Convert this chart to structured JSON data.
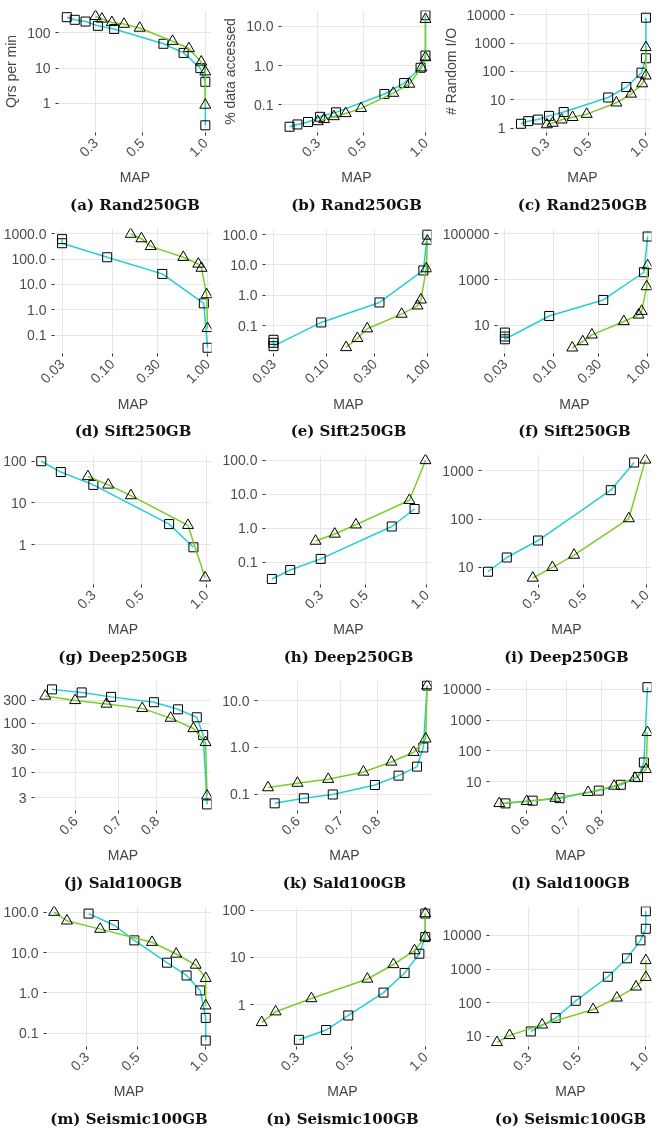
{
  "chart_data": [
    {
      "type": "line",
      "title": "(a) Rand250GB",
      "xlabel": "MAP",
      "ylabel": "Qrs per min",
      "log": "xy",
      "grid": true,
      "xlim": [
        0.2,
        1.07
      ],
      "ylim": [
        0.15,
        430
      ],
      "xticks": [
        0.3,
        0.5,
        {
          "value": 1,
          "label": "1.0"
        }
      ],
      "yticks": [
        1,
        10,
        100
      ],
      "series": [
        {
          "color": "#22cfd6",
          "marker": "square",
          "x": [
            0.219,
            0.239,
            0.269,
            0.308,
            0.368,
            0.632,
            0.788,
            0.947,
            1.0,
            1.0
          ],
          "values": [
            278,
            234,
            209,
            158,
            129,
            49,
            27,
            10,
            4.1,
            0.24
          ]
        },
        {
          "color": "#7ccd26",
          "marker": "triangle",
          "x": [
            0.3,
            0.322,
            0.359,
            0.41,
            0.487,
            0.698,
            0.835,
            0.956,
            1.0,
            1.0
          ],
          "values": [
            294,
            248,
            198,
            177,
            137,
            58,
            36,
            15,
            7.9,
            0.9
          ]
        }
      ]
    },
    {
      "type": "line",
      "title": "(b) Rand250GB",
      "xlabel": "MAP",
      "ylabel": "% data accessed",
      "log": "xy",
      "grid": true,
      "xlim": [
        0.2,
        1.07
      ],
      "ylim": [
        0.02,
        25
      ],
      "xticks": [
        0.3,
        0.5,
        {
          "value": 1,
          "label": "1.0"
        }
      ],
      "yticks": [
        0.1,
        {
          "value": 1,
          "label": "1.0"
        },
        {
          "value": 10,
          "label": "10.0"
        }
      ],
      "series": [
        {
          "color": "#22cfd6",
          "marker": "square",
          "x": [
            0.219,
            0.239,
            0.269,
            0.308,
            0.368,
            0.632,
            0.788,
            0.947,
            1.0,
            1.0
          ],
          "values": [
            0.028,
            0.032,
            0.037,
            0.05,
            0.065,
            0.19,
            0.36,
            0.88,
            1.8,
            19
          ]
        },
        {
          "color": "#7ccd26",
          "marker": "triangle",
          "x": [
            0.3,
            0.322,
            0.359,
            0.41,
            0.487,
            0.698,
            0.835,
            0.956,
            1.0,
            1.0
          ],
          "values": [
            0.038,
            0.043,
            0.051,
            0.061,
            0.082,
            0.2,
            0.34,
            0.88,
            1.6,
            15
          ]
        }
      ]
    },
    {
      "type": "line",
      "title": "(c) Rand250GB",
      "xlabel": "MAP",
      "ylabel": "# Random I/O",
      "log": "xy",
      "grid": true,
      "xlim": [
        0.2,
        1.07
      ],
      "ylim": [
        0.7,
        14000
      ],
      "xticks": [
        0.3,
        0.5,
        {
          "value": 1,
          "label": "1.0"
        }
      ],
      "yticks": [
        1,
        10,
        100,
        1000,
        10000
      ],
      "series": [
        {
          "color": "#22cfd6",
          "marker": "square",
          "x": [
            0.219,
            0.239,
            0.269,
            0.308,
            0.368,
            0.632,
            0.788,
            0.947,
            1.0,
            1.0
          ],
          "values": [
            1.42,
            1.76,
            2.0,
            2.7,
            3.7,
            12,
            28,
            90,
            290,
            7800
          ]
        },
        {
          "color": "#7ccd26",
          "marker": "triangle",
          "x": [
            0.3,
            0.322,
            0.359,
            0.41,
            0.487,
            0.698,
            0.835,
            0.956,
            1.0,
            1.0
          ],
          "values": [
            1.33,
            1.5,
            1.96,
            2.4,
            3.1,
            7.8,
            16,
            37,
            70,
            700
          ]
        }
      ]
    },
    {
      "type": "line",
      "title": "(d) Sift250GB",
      "xlabel": "MAP",
      "log": "xy",
      "grid": true,
      "xlim": [
        0.025,
        1.1
      ],
      "ylim": [
        0.019,
        1600
      ],
      "xticks": [
        0.03,
        {
          "value": 0.1,
          "label": "0.10"
        },
        {
          "value": 0.3,
          "label": "0.30"
        },
        {
          "value": 1,
          "label": "1.00"
        }
      ],
      "yticks": [
        0.1,
        {
          "value": 1,
          "label": "1.0"
        },
        {
          "value": 10,
          "label": "10.0"
        },
        {
          "value": 100,
          "label": "100.0"
        },
        {
          "value": 1000,
          "label": "1000.0"
        }
      ],
      "series": [
        {
          "color": "#22cfd6",
          "marker": "square",
          "x": [
            0.03,
            0.03,
            0.089,
            0.336,
            0.914,
            1.0
          ],
          "values": [
            610,
            420,
            118,
            26,
            1.8,
            0.032
          ]
        },
        {
          "color": "#7ccd26",
          "marker": "triangle",
          "x": [
            0.157,
            0.203,
            0.254,
            0.557,
            0.8,
            0.864,
            0.978,
            1.0
          ],
          "values": [
            960,
            640,
            316,
            118,
            64,
            44,
            4.0,
            0.185
          ]
        }
      ]
    },
    {
      "type": "line",
      "title": "(e) Sift250GB",
      "xlabel": "MAP",
      "log": "xy",
      "grid": true,
      "xlim": [
        0.025,
        1.1
      ],
      "ylim": [
        0.012,
        160
      ],
      "xticks": [
        0.03,
        {
          "value": 0.1,
          "label": "0.10"
        },
        {
          "value": 0.3,
          "label": "0.30"
        },
        {
          "value": 1,
          "label": "1.00"
        }
      ],
      "yticks": [
        0.1,
        {
          "value": 1,
          "label": "1.0"
        },
        {
          "value": 10,
          "label": "10.0"
        },
        {
          "value": 100,
          "label": "100.0"
        }
      ],
      "series": [
        {
          "color": "#22cfd6",
          "marker": "square",
          "x": [
            0.03,
            0.03,
            0.03,
            0.089,
            0.336,
            0.914,
            1.0
          ],
          "values": [
            0.034,
            0.027,
            0.021,
            0.127,
            0.58,
            6.6,
            100
          ]
        },
        {
          "color": "#7ccd26",
          "marker": "triangle",
          "x": [
            0.157,
            0.203,
            0.254,
            0.557,
            0.8,
            0.864,
            0.978,
            1.0
          ],
          "values": [
            0.019,
            0.038,
            0.079,
            0.24,
            0.45,
            0.71,
            7.6,
            62
          ]
        }
      ]
    },
    {
      "type": "line",
      "title": "(f) Sift250GB",
      "xlabel": "MAP",
      "log": "xy",
      "grid": true,
      "xlim": [
        0.025,
        1.1
      ],
      "ylim": [
        0.6,
        170000
      ],
      "xticks": [
        0.03,
        {
          "value": 0.1,
          "label": "0.10"
        },
        {
          "value": 0.3,
          "label": "0.30"
        },
        {
          "value": 1,
          "label": "1.00"
        }
      ],
      "yticks": [
        10,
        1000,
        100000
      ],
      "series": [
        {
          "color": "#22cfd6",
          "marker": "square",
          "x": [
            0.03,
            0.03,
            0.03,
            0.089,
            0.336,
            0.914,
            1.0
          ],
          "values": [
            4.9,
            3.3,
            2.5,
            26,
            130,
            2100,
            76000
          ]
        },
        {
          "color": "#7ccd26",
          "marker": "triangle",
          "x": [
            0.157,
            0.203,
            0.254,
            0.557,
            0.8,
            0.864,
            0.978,
            1.0
          ],
          "values": [
            1.06,
            2.0,
            3.9,
            15,
            29,
            42,
            500,
            4100
          ]
        }
      ]
    },
    {
      "type": "line",
      "title": "(g) Deep250GB",
      "xlabel": "MAP",
      "log": "xy",
      "grid": true,
      "xlim": [
        0.16,
        1.06
      ],
      "ylim": [
        0.11,
        145
      ],
      "xticks": [
        0.3,
        0.5,
        {
          "value": 1,
          "label": "1.0"
        }
      ],
      "yticks": [
        1,
        10,
        100
      ],
      "series": [
        {
          "color": "#22cfd6",
          "marker": "square",
          "x": [
            0.172,
            0.212,
            0.3,
            0.674,
            0.874
          ],
          "values": [
            100,
            55,
            27,
            3.1,
            0.86
          ]
        },
        {
          "color": "#7ccd26",
          "marker": "triangle",
          "x": [
            0.283,
            0.352,
            0.448,
            0.824,
            0.99
          ],
          "values": [
            43,
            27,
            15,
            2.9,
            0.16
          ]
        }
      ]
    },
    {
      "type": "line",
      "title": "(h) Deep250GB",
      "xlabel": "MAP",
      "log": "xy",
      "grid": true,
      "xlim": [
        0.16,
        1.06
      ],
      "ylim": [
        0.022,
        150
      ],
      "xticks": [
        0.3,
        0.5,
        {
          "value": 1,
          "label": "1.0"
        }
      ],
      "yticks": [
        0.1,
        {
          "value": 1,
          "label": "1.0"
        },
        {
          "value": 10,
          "label": "10.0"
        },
        {
          "value": 100,
          "label": "100.0"
        }
      ],
      "series": [
        {
          "color": "#22cfd6",
          "marker": "square",
          "x": [
            0.172,
            0.212,
            0.3,
            0.674,
            0.874
          ],
          "values": [
            0.032,
            0.059,
            0.125,
            1.13,
            3.7
          ]
        },
        {
          "color": "#7ccd26",
          "marker": "triangle",
          "x": [
            0.283,
            0.352,
            0.448,
            0.824,
            0.99
          ],
          "values": [
            0.42,
            0.68,
            1.27,
            6.7,
            100
          ]
        }
      ]
    },
    {
      "type": "line",
      "title": "(i) Deep250GB",
      "xlabel": "MAP",
      "log": "xy",
      "grid": true,
      "xlim": [
        0.16,
        1.06
      ],
      "ylim": [
        4.4,
        2200
      ],
      "xticks": [
        0.3,
        0.5,
        {
          "value": 1,
          "label": "1.0"
        }
      ],
      "yticks": [
        10,
        100,
        1000
      ],
      "series": [
        {
          "color": "#22cfd6",
          "marker": "square",
          "x": [
            0.172,
            0.212,
            0.3,
            0.674,
            0.874
          ],
          "values": [
            8.1,
            16,
            36,
            400,
            1500
          ]
        },
        {
          "color": "#7ccd26",
          "marker": "triangle",
          "x": [
            0.283,
            0.352,
            0.448,
            0.824,
            0.99
          ],
          "values": [
            6.0,
            10,
            18,
            103,
            1700
          ]
        }
      ]
    },
    {
      "type": "line",
      "title": "(j) Sald100GB",
      "xlabel": "MAP",
      "log": "xy",
      "grid": true,
      "xlim": [
        0.52,
        0.97
      ],
      "ylim": [
        1.65,
        760
      ],
      "xticks": [
        0.6,
        0.7,
        0.8
      ],
      "yticks": [
        3,
        10,
        30,
        100,
        300
      ],
      "series": [
        {
          "color": "#22cfd6",
          "marker": "square",
          "x": [
            0.553,
            0.614,
            0.681,
            0.792,
            0.862,
            0.921,
            0.942,
            0.955
          ],
          "values": [
            500,
            433,
            351,
            273,
            195,
            134,
            58,
            2.2
          ]
        },
        {
          "color": "#7ccd26",
          "marker": "triangle",
          "x": [
            0.54,
            0.6,
            0.67,
            0.76,
            0.84,
            0.91,
            0.95,
            0.955
          ],
          "values": [
            366,
            297,
            251,
            204,
            129,
            79,
            41,
            3.3
          ]
        }
      ]
    },
    {
      "type": "line",
      "title": "(k) Sald100GB",
      "xlabel": "MAP",
      "log": "xy",
      "grid": true,
      "xlim": [
        0.52,
        0.97
      ],
      "ylim": [
        0.045,
        27
      ],
      "xticks": [
        0.6,
        0.7,
        0.8
      ],
      "yticks": [
        0.1,
        {
          "value": 1,
          "label": "1.0"
        },
        {
          "value": 10,
          "label": "10.0"
        }
      ],
      "series": [
        {
          "color": "#22cfd6",
          "marker": "square",
          "x": [
            0.553,
            0.614,
            0.681,
            0.792,
            0.862,
            0.921,
            0.942,
            0.955
          ],
          "values": [
            0.064,
            0.082,
            0.099,
            0.158,
            0.25,
            0.39,
            1.0,
            21
          ]
        },
        {
          "color": "#7ccd26",
          "marker": "triangle",
          "x": [
            0.54,
            0.6,
            0.67,
            0.76,
            0.84,
            0.91,
            0.95,
            0.955
          ],
          "values": [
            0.139,
            0.173,
            0.21,
            0.3,
            0.49,
            0.79,
            1.53,
            21
          ]
        }
      ]
    },
    {
      "type": "line",
      "title": "(l) Sald100GB",
      "xlabel": "MAP",
      "log": "xy",
      "grid": true,
      "xlim": [
        0.52,
        0.97
      ],
      "ylim": [
        1.15,
        19500
      ],
      "xticks": [
        0.6,
        0.7,
        0.8
      ],
      "yticks": [
        10,
        100,
        1000,
        10000
      ],
      "series": [
        {
          "color": "#22cfd6",
          "marker": "square",
          "x": [
            0.553,
            0.614,
            0.681,
            0.792,
            0.862,
            0.921,
            0.942,
            0.955
          ],
          "values": [
            1.96,
            2.4,
            2.9,
            5.1,
            7.9,
            14,
            42,
            11800
          ]
        },
        {
          "color": "#7ccd26",
          "marker": "triangle",
          "x": [
            0.54,
            0.6,
            0.67,
            0.76,
            0.84,
            0.91,
            0.95,
            0.955
          ],
          "values": [
            1.96,
            2.3,
            2.9,
            4.5,
            7.2,
            13,
            25,
            400
          ]
        }
      ]
    },
    {
      "type": "line",
      "title": "(m) Seismic100GB",
      "xlabel": "MAP",
      "log": "xy",
      "grid": true,
      "xlim": [
        0.2,
        1.06
      ],
      "ylim": [
        0.047,
        138
      ],
      "xticks": [
        0.3,
        0.5,
        {
          "value": 1,
          "label": "1.0"
        }
      ],
      "yticks": [
        0.1,
        {
          "value": 1,
          "label": "1.0"
        },
        {
          "value": 10,
          "label": "10.0"
        },
        {
          "value": 100,
          "label": "100.0"
        }
      ],
      "series": [
        {
          "color": "#22cfd6",
          "marker": "square",
          "x": [
            0.306,
            0.395,
            0.486,
            0.676,
            0.824,
            0.946,
            1.0,
            1.0
          ],
          "values": [
            92,
            48,
            20,
            5.6,
            2.7,
            1.15,
            0.24,
            0.066
          ]
        },
        {
          "color": "#7ccd26",
          "marker": "triangle",
          "x": [
            0.216,
            0.246,
            0.344,
            0.581,
            0.742,
            0.904,
            1.0,
            1.0
          ],
          "values": [
            100,
            61,
            38,
            18,
            9.2,
            4.9,
            2.3,
            0.48
          ]
        }
      ]
    },
    {
      "type": "line",
      "title": "(n) Seismic100GB",
      "xlabel": "MAP",
      "log": "xy",
      "grid": true,
      "xlim": [
        0.2,
        1.06
      ],
      "ylim": [
        0.13,
        120
      ],
      "xticks": [
        0.3,
        0.5,
        {
          "value": 1,
          "label": "1.0"
        }
      ],
      "yticks": [
        1,
        10,
        100
      ],
      "series": [
        {
          "color": "#22cfd6",
          "marker": "square",
          "x": [
            0.306,
            0.395,
            0.486,
            0.676,
            0.824,
            0.946,
            1.0,
            1.0
          ],
          "values": [
            0.18,
            0.29,
            0.59,
            1.8,
            4.7,
            12,
            27,
            85
          ]
        },
        {
          "color": "#7ccd26",
          "marker": "triangle",
          "x": [
            0.216,
            0.246,
            0.344,
            0.581,
            0.742,
            0.904,
            1.0,
            1.0
          ],
          "values": [
            0.42,
            0.71,
            1.35,
            3.5,
            7.1,
            14,
            27,
            85
          ]
        }
      ]
    },
    {
      "type": "line",
      "title": "(o) Seismic100GB",
      "xlabel": "MAP",
      "log": "xy",
      "grid": true,
      "xlim": [
        0.2,
        1.06
      ],
      "ylim": [
        5,
        72000
      ],
      "xticks": [
        0.3,
        0.5,
        {
          "value": 1,
          "label": "1.0"
        }
      ],
      "yticks": [
        10,
        100,
        1000,
        10000
      ],
      "series": [
        {
          "color": "#22cfd6",
          "marker": "square",
          "x": [
            0.306,
            0.395,
            0.486,
            0.676,
            0.824,
            0.946,
            1.0,
            1.0
          ],
          "values": [
            14,
            35,
            114,
            590,
            2080,
            7100,
            15700,
            52000
          ]
        },
        {
          "color": "#7ccd26",
          "marker": "triangle",
          "x": [
            0.216,
            0.246,
            0.344,
            0.581,
            0.742,
            0.904,
            1.0,
            1.0
          ],
          "values": [
            6.6,
            10.7,
            22,
            63,
            139,
            296,
            570,
            1800
          ]
        }
      ]
    }
  ]
}
